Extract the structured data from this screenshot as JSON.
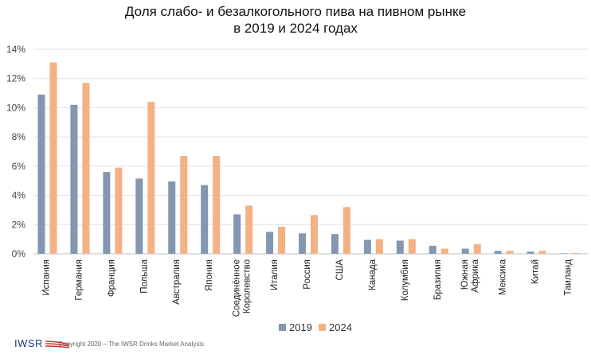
{
  "chart_data": {
    "type": "bar",
    "title_lines": [
      "Доля слабо- и безалкогольного пива на пивном рынке",
      "в 2019 и 2024 годах"
    ],
    "categories": [
      "Испания",
      "Германия",
      "Франция",
      "Польша",
      "Австралия",
      "Япония",
      [
        "Соединённое",
        "Королевство"
      ],
      "Италия",
      "Россия",
      "США",
      "Канада",
      "Колумбия",
      "Бразилия",
      [
        "Южная",
        "Африка"
      ],
      "Мексика",
      "Китай",
      "Таиланд"
    ],
    "series": [
      {
        "name": "2019",
        "color": "#8497b0",
        "values": [
          10.9,
          10.2,
          5.6,
          5.15,
          4.95,
          4.7,
          2.7,
          1.5,
          1.4,
          1.35,
          0.95,
          0.9,
          0.55,
          0.35,
          0.2,
          0.15,
          0.03
        ]
      },
      {
        "name": "2024",
        "color": "#f4b183",
        "values": [
          13.1,
          11.7,
          5.9,
          10.4,
          6.7,
          6.7,
          3.3,
          1.85,
          2.65,
          3.2,
          1.0,
          1.0,
          0.35,
          0.65,
          0.2,
          0.2,
          0.05
        ]
      }
    ],
    "ylim": [
      0,
      14
    ],
    "yticks": [
      0,
      2,
      4,
      6,
      8,
      10,
      12,
      14
    ],
    "ytick_labels": [
      "0%",
      "2%",
      "4%",
      "6%",
      "8%",
      "10%",
      "12%",
      "14%"
    ],
    "grid": true,
    "legend_position": "bottom"
  },
  "footer": {
    "logo_text": "IWSR",
    "copyright": "Copyright 2020 – The IWSR Drinks Market Analysis"
  }
}
